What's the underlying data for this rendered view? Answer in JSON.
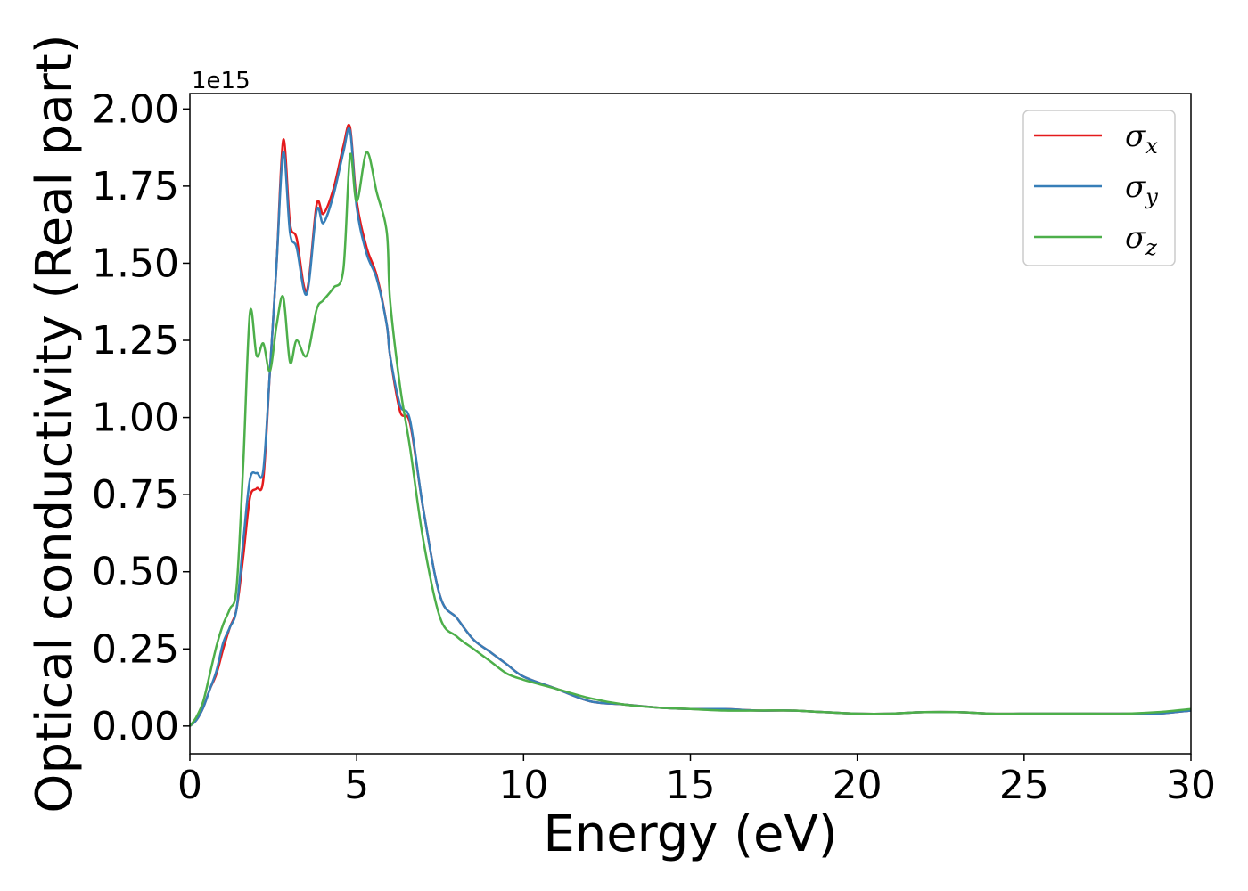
{
  "chart_data": {
    "type": "line",
    "title": "",
    "xlabel": "Energy (eV)",
    "ylabel": "Optical conductivity (Real part)",
    "y_offset_label": "1e15",
    "xlim": [
      0,
      30
    ],
    "ylim": [
      -0.09,
      2.05
    ],
    "xticks": [
      0,
      5,
      10,
      15,
      20,
      25,
      30
    ],
    "xtick_labels": [
      "0",
      "5",
      "10",
      "15",
      "20",
      "25",
      "30"
    ],
    "yticks": [
      0.0,
      0.25,
      0.5,
      0.75,
      1.0,
      1.25,
      1.5,
      1.75,
      2.0
    ],
    "ytick_labels": [
      "0.00",
      "0.25",
      "0.50",
      "0.75",
      "1.00",
      "1.25",
      "1.50",
      "1.75",
      "2.00"
    ],
    "grid": false,
    "legend_position": "top-right",
    "series": [
      {
        "name": "σx",
        "legend_base": "σ",
        "legend_sub": "x",
        "color": "#e41a1c",
        "x": [
          0,
          0.2,
          0.4,
          0.6,
          0.8,
          1.0,
          1.2,
          1.4,
          1.6,
          1.8,
          2.0,
          2.2,
          2.4,
          2.6,
          2.8,
          3.0,
          3.2,
          3.5,
          3.8,
          4.0,
          4.3,
          4.6,
          4.8,
          5.0,
          5.3,
          5.6,
          5.9,
          6.0,
          6.3,
          6.6,
          7.0,
          7.5,
          8.0,
          8.5,
          9.0,
          9.5,
          10.0,
          11.0,
          12.0,
          13.0,
          14.0,
          15.0,
          16.0,
          17.0,
          18.0,
          19.0,
          20.0,
          21.0,
          22.0,
          23.0,
          24.0,
          25.0,
          26.0,
          27.0,
          28.0,
          29.0,
          30.0
        ],
        "values": [
          0.0,
          0.02,
          0.06,
          0.12,
          0.17,
          0.25,
          0.32,
          0.38,
          0.55,
          0.74,
          0.77,
          0.8,
          1.15,
          1.5,
          1.9,
          1.63,
          1.58,
          1.41,
          1.69,
          1.66,
          1.74,
          1.88,
          1.94,
          1.7,
          1.55,
          1.46,
          1.3,
          1.2,
          1.02,
          0.98,
          0.7,
          0.42,
          0.35,
          0.28,
          0.24,
          0.2,
          0.16,
          0.12,
          0.08,
          0.07,
          0.06,
          0.055,
          0.055,
          0.05,
          0.05,
          0.045,
          0.04,
          0.04,
          0.045,
          0.045,
          0.04,
          0.04,
          0.04,
          0.04,
          0.04,
          0.04,
          0.05
        ]
      },
      {
        "name": "σy",
        "legend_base": "σ",
        "legend_sub": "y",
        "color": "#377eb8",
        "x": [
          0,
          0.2,
          0.4,
          0.6,
          0.8,
          1.0,
          1.2,
          1.4,
          1.6,
          1.8,
          2.0,
          2.2,
          2.4,
          2.6,
          2.8,
          3.0,
          3.2,
          3.5,
          3.8,
          4.0,
          4.3,
          4.6,
          4.8,
          5.0,
          5.3,
          5.6,
          5.9,
          6.0,
          6.3,
          6.6,
          7.0,
          7.5,
          8.0,
          8.5,
          9.0,
          9.5,
          10.0,
          11.0,
          12.0,
          13.0,
          14.0,
          15.0,
          16.0,
          17.0,
          18.0,
          19.0,
          20.0,
          21.0,
          22.0,
          23.0,
          24.0,
          25.0,
          26.0,
          27.0,
          28.0,
          29.0,
          30.0
        ],
        "values": [
          0.0,
          0.02,
          0.06,
          0.12,
          0.18,
          0.27,
          0.32,
          0.38,
          0.6,
          0.8,
          0.82,
          0.83,
          1.15,
          1.5,
          1.86,
          1.6,
          1.55,
          1.4,
          1.67,
          1.63,
          1.72,
          1.86,
          1.93,
          1.68,
          1.53,
          1.45,
          1.3,
          1.2,
          1.04,
          0.99,
          0.7,
          0.42,
          0.35,
          0.28,
          0.24,
          0.2,
          0.16,
          0.12,
          0.08,
          0.07,
          0.06,
          0.055,
          0.055,
          0.05,
          0.05,
          0.045,
          0.04,
          0.04,
          0.045,
          0.045,
          0.04,
          0.04,
          0.04,
          0.04,
          0.04,
          0.04,
          0.05
        ]
      },
      {
        "name": "σz",
        "legend_base": "σ",
        "legend_sub": "z",
        "color": "#4daf4a",
        "x": [
          0,
          0.2,
          0.4,
          0.6,
          0.8,
          1.0,
          1.2,
          1.4,
          1.6,
          1.8,
          2.0,
          2.2,
          2.4,
          2.6,
          2.8,
          3.0,
          3.2,
          3.5,
          3.8,
          4.0,
          4.3,
          4.6,
          4.8,
          5.0,
          5.3,
          5.6,
          5.9,
          6.0,
          6.3,
          6.6,
          7.0,
          7.5,
          8.0,
          8.5,
          9.0,
          9.5,
          10.0,
          11.0,
          12.0,
          13.0,
          14.0,
          15.0,
          16.0,
          17.0,
          18.0,
          19.0,
          20.0,
          21.0,
          22.0,
          23.0,
          24.0,
          25.0,
          26.0,
          27.0,
          28.0,
          29.0,
          30.0
        ],
        "values": [
          0.0,
          0.03,
          0.08,
          0.17,
          0.26,
          0.33,
          0.38,
          0.45,
          0.85,
          1.34,
          1.2,
          1.24,
          1.15,
          1.3,
          1.39,
          1.18,
          1.25,
          1.2,
          1.35,
          1.38,
          1.42,
          1.48,
          1.85,
          1.7,
          1.86,
          1.73,
          1.6,
          1.38,
          1.1,
          0.9,
          0.6,
          0.35,
          0.29,
          0.25,
          0.21,
          0.17,
          0.15,
          0.12,
          0.09,
          0.07,
          0.06,
          0.055,
          0.05,
          0.05,
          0.05,
          0.045,
          0.04,
          0.04,
          0.045,
          0.045,
          0.04,
          0.04,
          0.04,
          0.04,
          0.04,
          0.045,
          0.055
        ]
      }
    ]
  }
}
